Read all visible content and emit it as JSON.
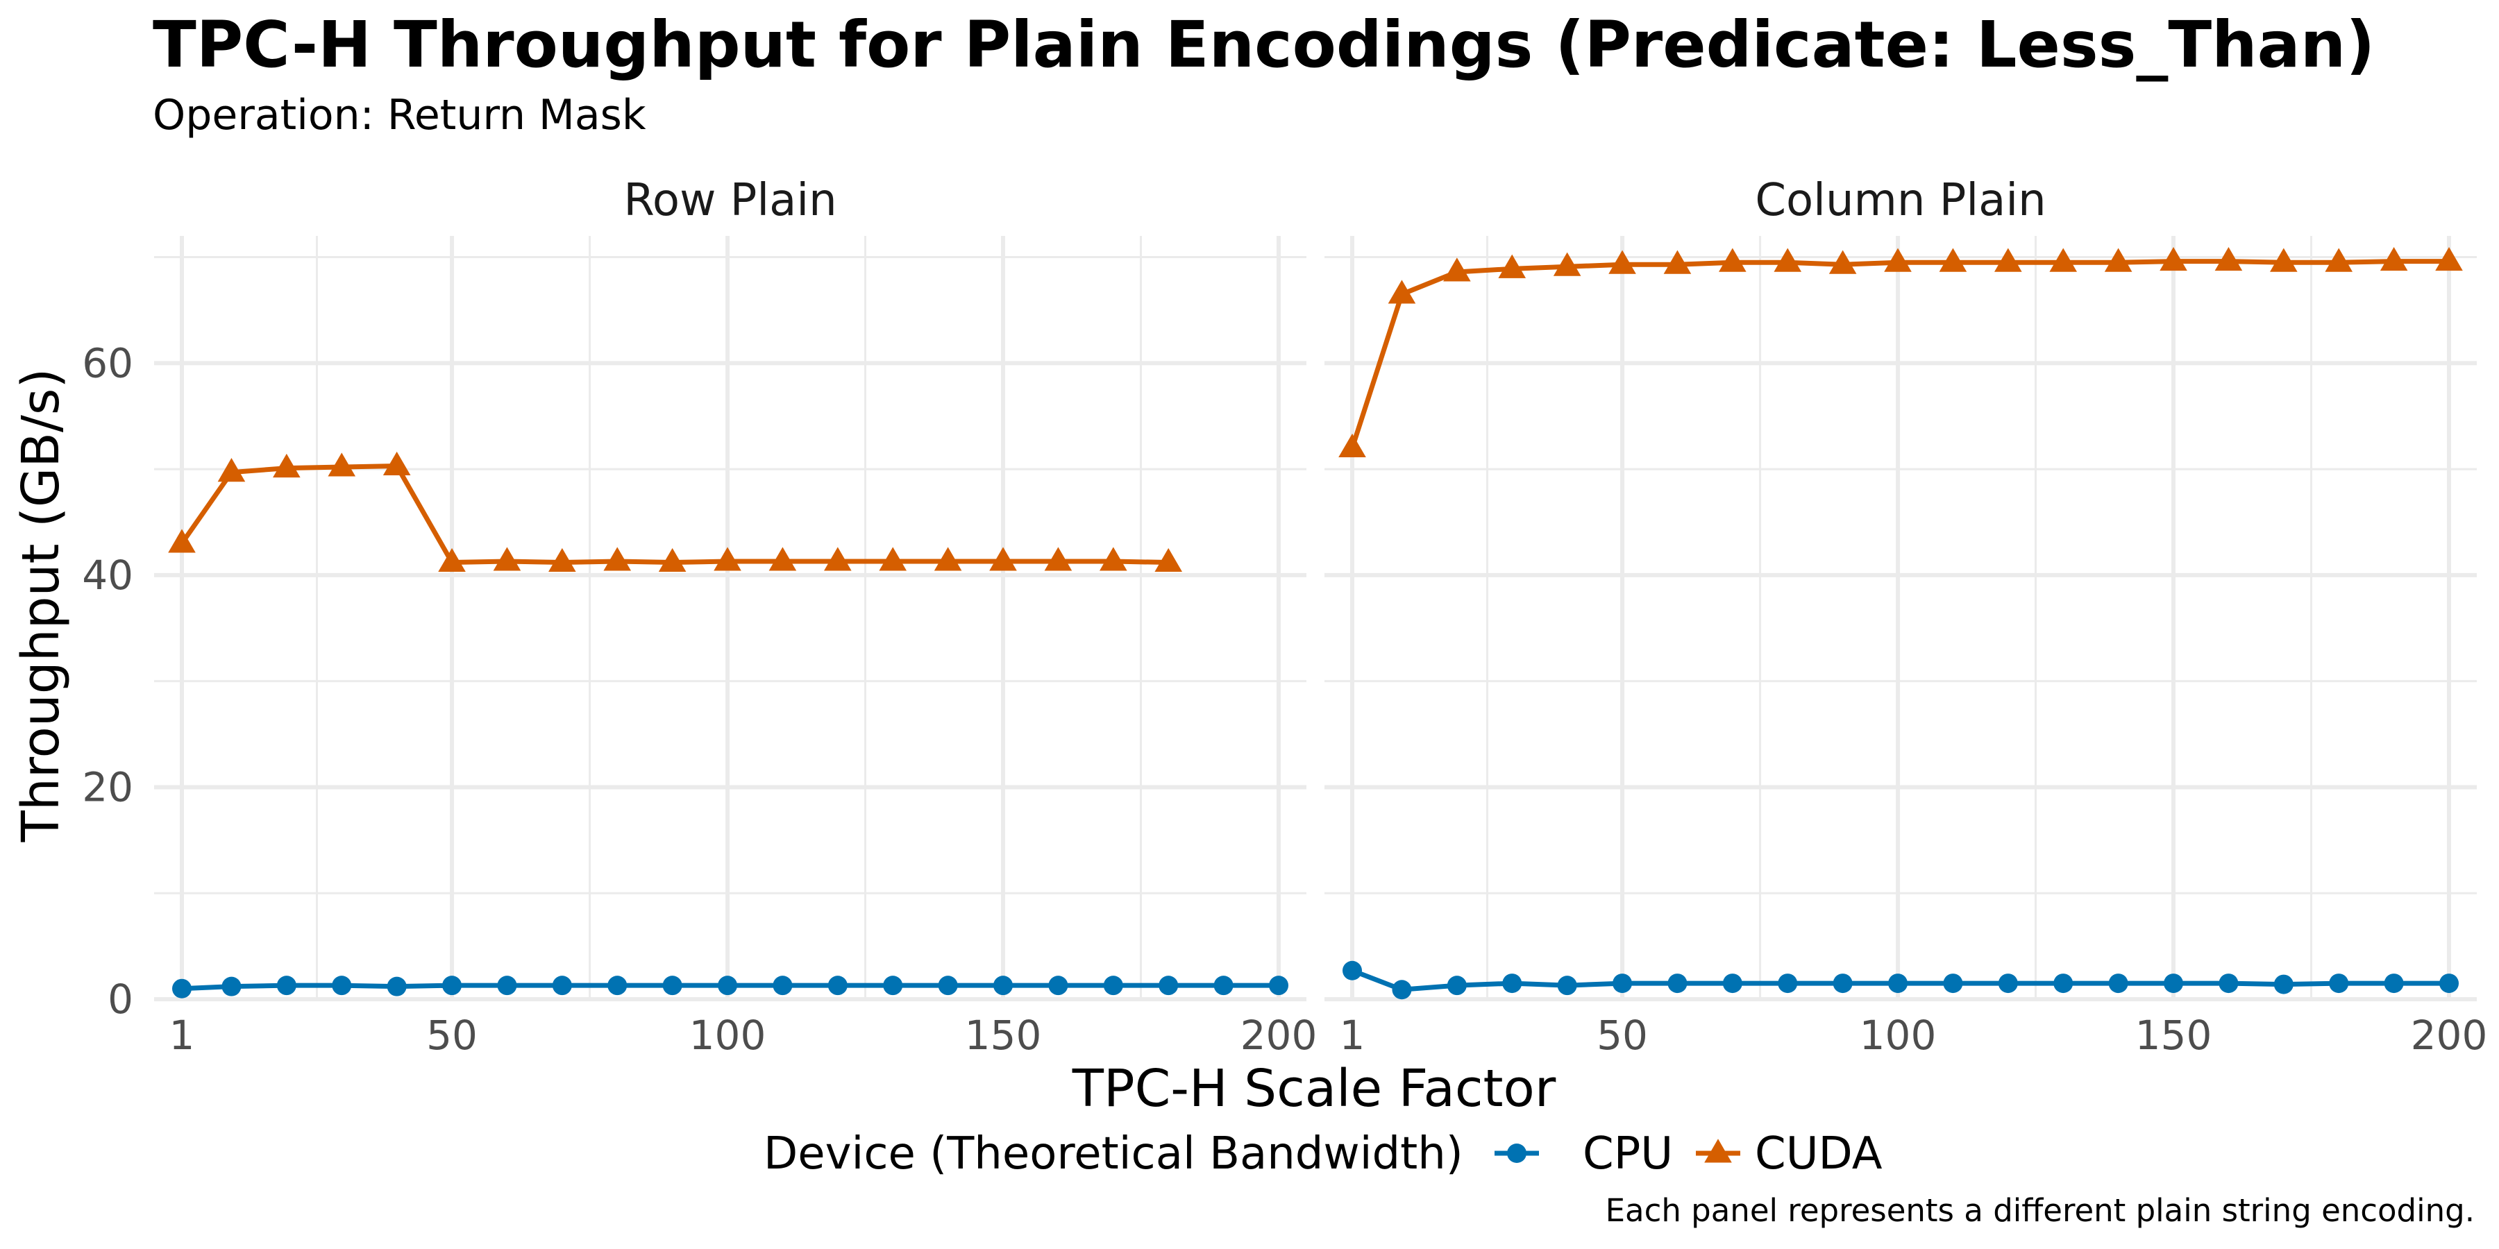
{
  "chart_data": {
    "type": "line",
    "title": "TPC-H Throughput for Plain Encodings (Predicate: Less_Than)",
    "subtitle": "Operation: Return Mask",
    "xlabel": "TPC-H Scale Factor",
    "ylabel": "Throughput (GB/s)",
    "caption": "Each panel represents a different plain string encoding.",
    "legend": {
      "title": "Device (Theoretical Bandwidth)",
      "position": "bottom",
      "items": [
        {
          "name": "CPU",
          "color": "#0072B2",
          "shape": "circle"
        },
        {
          "name": "CUDA",
          "color": "#D55E00",
          "shape": "triangle"
        }
      ]
    },
    "xlim": [
      1,
      200
    ],
    "ylim": [
      0,
      72
    ],
    "x_ticks": [
      1,
      50,
      100,
      150,
      200
    ],
    "x_tick_labels": [
      "1",
      "50",
      "100",
      "150",
      "200"
    ],
    "y_ticks": [
      0,
      20,
      40,
      60
    ],
    "y_tick_labels": [
      "0",
      "20",
      "40",
      "60"
    ],
    "grid": true,
    "panels": [
      {
        "name": "Row Plain",
        "series": [
          {
            "name": "CPU",
            "x": [
              1,
              10,
              20,
              30,
              40,
              50,
              60,
              70,
              80,
              90,
              100,
              110,
              120,
              130,
              140,
              150,
              160,
              170,
              180,
              190,
              200
            ],
            "y": [
              1.0,
              1.2,
              1.3,
              1.3,
              1.2,
              1.3,
              1.3,
              1.3,
              1.3,
              1.3,
              1.3,
              1.3,
              1.3,
              1.3,
              1.3,
              1.3,
              1.3,
              1.3,
              1.3,
              1.3,
              1.3
            ]
          },
          {
            "name": "CUDA",
            "x": [
              1,
              10,
              20,
              30,
              40,
              50,
              60,
              70,
              80,
              90,
              100,
              110,
              120,
              130,
              140,
              150,
              160,
              170,
              180
            ],
            "y": [
              43.0,
              49.7,
              50.1,
              50.2,
              50.3,
              41.2,
              41.3,
              41.2,
              41.3,
              41.2,
              41.3,
              41.3,
              41.3,
              41.3,
              41.3,
              41.3,
              41.3,
              41.3,
              41.2
            ]
          }
        ]
      },
      {
        "name": "Column Plain",
        "series": [
          {
            "name": "CPU",
            "x": [
              1,
              10,
              20,
              30,
              40,
              50,
              60,
              70,
              80,
              90,
              100,
              110,
              120,
              130,
              140,
              150,
              160,
              170,
              180,
              190,
              200
            ],
            "y": [
              2.7,
              0.9,
              1.3,
              1.5,
              1.3,
              1.5,
              1.5,
              1.5,
              1.5,
              1.5,
              1.5,
              1.5,
              1.5,
              1.5,
              1.5,
              1.5,
              1.5,
              1.4,
              1.5,
              1.5,
              1.5
            ]
          },
          {
            "name": "CUDA",
            "x": [
              1,
              10,
              20,
              30,
              40,
              50,
              60,
              70,
              80,
              90,
              100,
              110,
              120,
              130,
              140,
              150,
              160,
              170,
              180,
              190,
              200
            ],
            "y": [
              52.0,
              66.5,
              68.6,
              68.9,
              69.1,
              69.3,
              69.3,
              69.5,
              69.5,
              69.3,
              69.5,
              69.5,
              69.5,
              69.5,
              69.5,
              69.6,
              69.6,
              69.5,
              69.5,
              69.6,
              69.6
            ]
          }
        ]
      }
    ]
  }
}
